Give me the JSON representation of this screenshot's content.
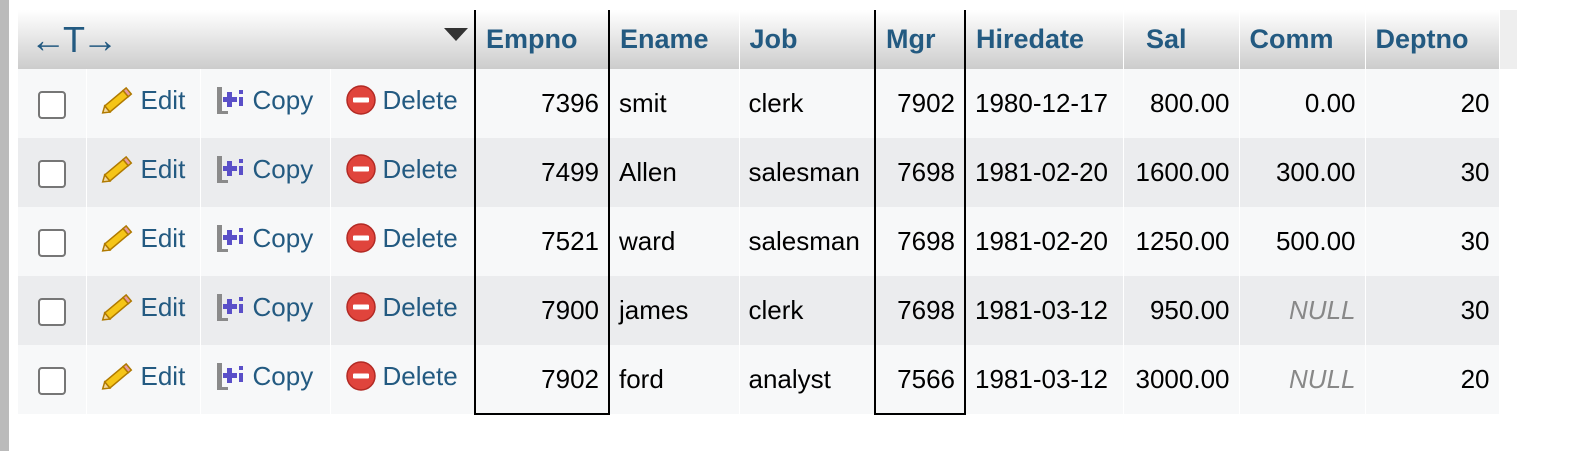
{
  "table": {
    "controls_icon": "resize-arrows-icon",
    "controls_glyph": "←T→",
    "sort_icon": "sort-triangle-icon",
    "columns": [
      "Empno",
      "Ename",
      "Job",
      "Mgr",
      "Hiredate",
      "Sal",
      "Comm",
      "Deptno"
    ],
    "actions": {
      "edit": "Edit",
      "copy": "Copy",
      "delete": "Delete"
    },
    "rows": [
      {
        "empno": "7396",
        "ename": "smit",
        "job": "clerk",
        "mgr": "7902",
        "hiredate": "1980-12-17",
        "sal": "800.00",
        "comm": "0.00",
        "deptno": "20"
      },
      {
        "empno": "7499",
        "ename": "Allen",
        "job": "salesman",
        "mgr": "7698",
        "hiredate": "1981-02-20",
        "sal": "1600.00",
        "comm": "300.00",
        "deptno": "30"
      },
      {
        "empno": "7521",
        "ename": "ward",
        "job": "salesman",
        "mgr": "7698",
        "hiredate": "1981-02-20",
        "sal": "1250.00",
        "comm": "500.00",
        "deptno": "30"
      },
      {
        "empno": "7900",
        "ename": "james",
        "job": "clerk",
        "mgr": "7698",
        "hiredate": "1981-03-12",
        "sal": "950.00",
        "comm": "NULL",
        "deptno": "30"
      },
      {
        "empno": "7902",
        "ename": "ford",
        "job": "analyst",
        "mgr": "7566",
        "hiredate": "1981-03-12",
        "sal": "3000.00",
        "comm": "NULL",
        "deptno": "20"
      }
    ]
  },
  "colors": {
    "link": "#235a81",
    "marked_column_border": "#000000",
    "delete_icon": "#e0443c",
    "edit_icon": "#f0b000",
    "copy_icon": "#5a4fc8",
    "null_text": "#888888"
  }
}
